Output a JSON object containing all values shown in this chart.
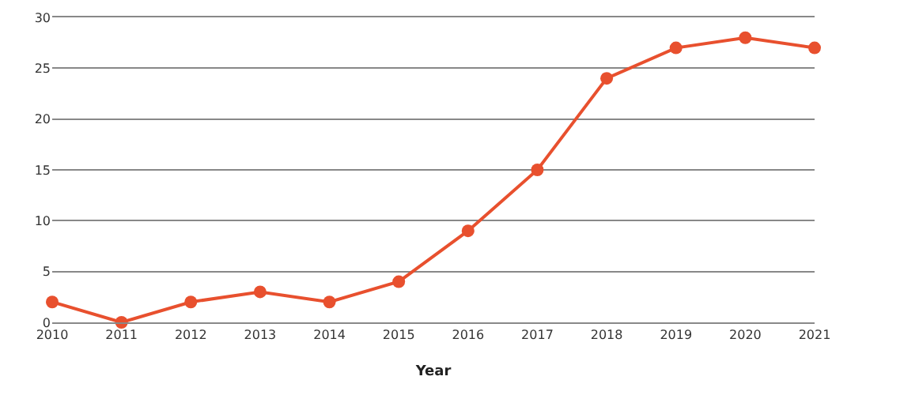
{
  "chart_data": {
    "type": "line",
    "xlabel": "Year",
    "x": [
      2010,
      2011,
      2012,
      2013,
      2014,
      2015,
      2016,
      2017,
      2018,
      2019,
      2020,
      2021
    ],
    "series": [
      {
        "color": "#e8502e",
        "values": [
          2,
          0,
          2,
          3,
          2,
          4,
          9,
          15,
          24,
          27,
          28,
          27
        ]
      }
    ],
    "xlim": [
      2010,
      2021
    ],
    "xticks": [
      2010,
      2011,
      2012,
      2013,
      2014,
      2015,
      2016,
      2017,
      2018,
      2019,
      2020,
      2021
    ],
    "ylim": [
      0,
      30
    ],
    "yticks": [
      0,
      5,
      10,
      15,
      20,
      25,
      30
    ],
    "grid": "y",
    "marker": "circle",
    "line_style": "solid"
  }
}
